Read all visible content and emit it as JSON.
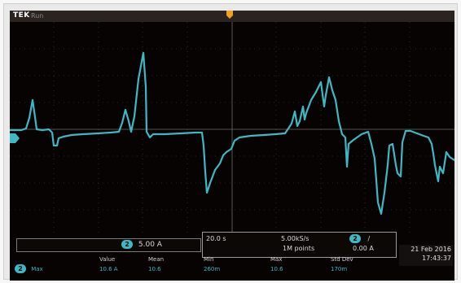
{
  "header": {
    "brand": "TEK",
    "state": "Run"
  },
  "colors": {
    "trace": "#3fb8c4",
    "background": "#070302",
    "trigger_marker": "#f0a020",
    "grid": "#5a5a5a"
  },
  "channel": {
    "number": "2",
    "marker_icon": "channel-2-ground-marker-icon"
  },
  "scale": {
    "channel": "2",
    "value": "5.00 A"
  },
  "timebase": {
    "horizontal": "20.0 s",
    "sample_rate": "5.00kS/s",
    "record_length": "1M points",
    "trigger_channel": "2",
    "trigger_slope": "/",
    "trigger_level": "0.00 A"
  },
  "datetime": {
    "date": "21 Feb 2016",
    "time": "17:43:37"
  },
  "measurements": {
    "headers": [
      "Value",
      "Mean",
      "Min",
      "Max",
      "Std Dev"
    ],
    "rows": [
      {
        "channel": "2",
        "name": "Max",
        "values": [
          "10.6 A",
          "10.6",
          "260m",
          "10.6",
          "170m"
        ]
      }
    ]
  }
}
